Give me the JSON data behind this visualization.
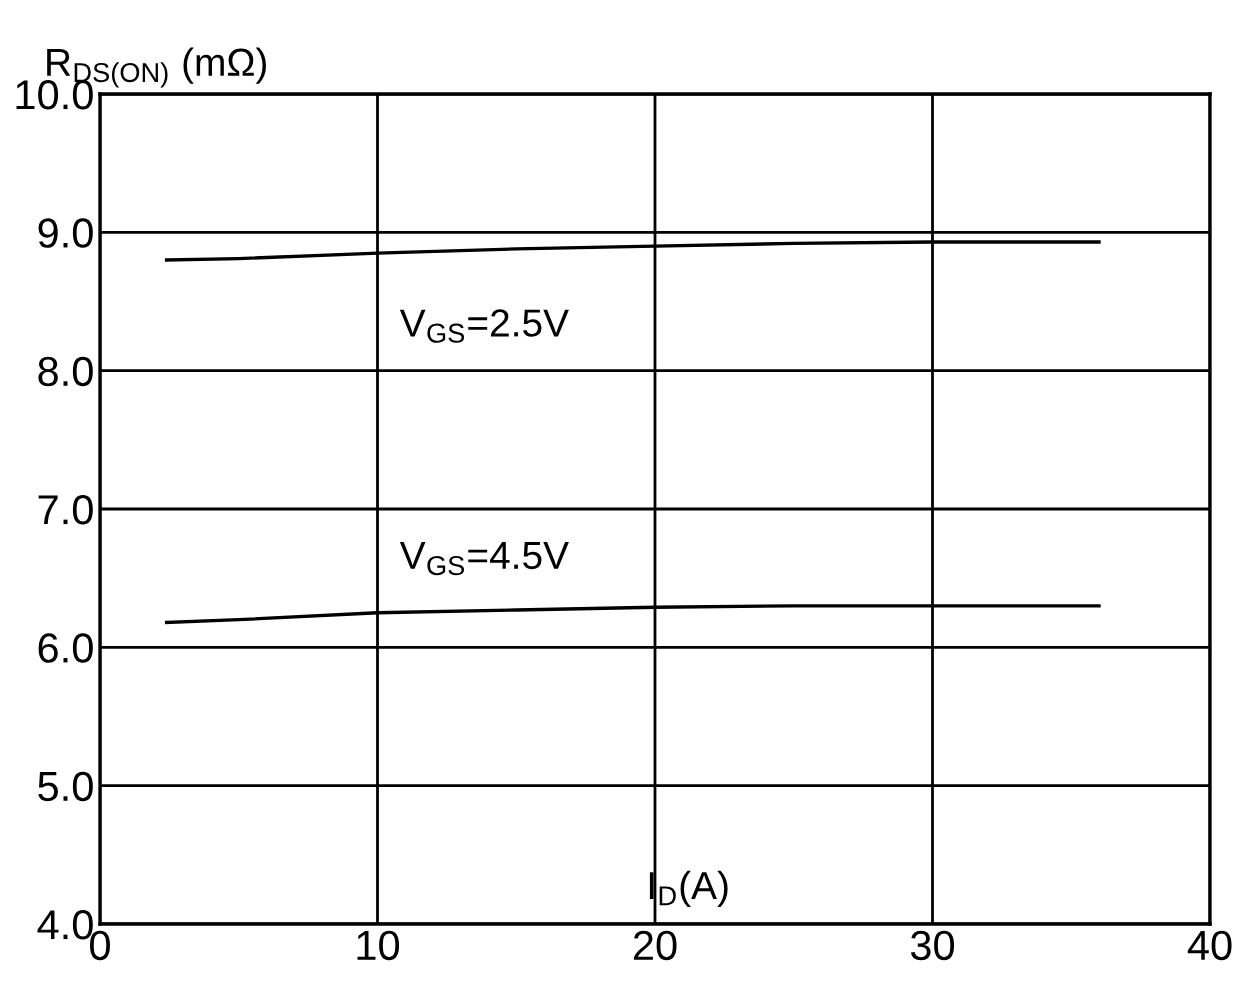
{
  "chart_data": {
    "type": "line",
    "ylabel": "R$_{DS(ON)}$ (mΩ)",
    "xlabel": "I$_{D}$(A)",
    "x": [
      2.4,
      5,
      10,
      15,
      20,
      25,
      30,
      36
    ],
    "series": [
      {
        "color": "#000000",
        "values": [
          8.8,
          8.81,
          8.85,
          8.88,
          8.9,
          8.92,
          8.93,
          8.93
        ]
      },
      {
        "color": "#000000",
        "values": [
          6.18,
          6.2,
          6.25,
          6.27,
          6.29,
          6.3,
          6.3,
          6.3
        ]
      }
    ],
    "xlim": [
      0,
      40
    ],
    "xticks": [
      0,
      10,
      20,
      30,
      40
    ],
    "ylim": [
      4,
      10
    ],
    "yticks": [
      {
        "value": 4,
        "label": "4.0"
      },
      {
        "value": 5,
        "label": "5.0"
      },
      {
        "value": 6,
        "label": "6.0"
      },
      {
        "value": 7,
        "label": "7.0"
      },
      {
        "value": 8,
        "label": "8.0"
      },
      {
        "value": 9,
        "label": "9.0"
      },
      {
        "value": 10,
        "label": "10.0"
      }
    ],
    "annotations": [
      "V$_{GS}$=2.5V",
      "V$_{GS}$=4.5V"
    ],
    "grid": true,
    "marker": "none",
    "line_style": "solid"
  }
}
